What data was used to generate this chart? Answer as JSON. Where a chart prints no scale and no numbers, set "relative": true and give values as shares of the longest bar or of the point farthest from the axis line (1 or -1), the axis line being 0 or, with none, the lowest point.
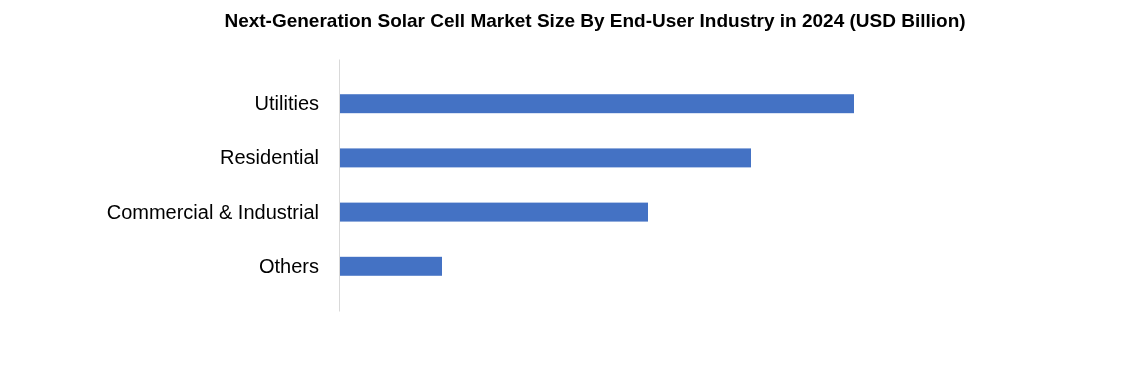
{
  "chart_data": {
    "type": "bar",
    "orientation": "horizontal",
    "relative": true,
    "title": "Next-Generation Solar Cell Market Size By End-User Industry in 2024 (USD Billion)",
    "categories": [
      "Utilities",
      "Residential",
      "Commercial & Industrial",
      "Others"
    ],
    "values": [
      1,
      0.8,
      0.6,
      0.2
    ],
    "color": "#4472c4"
  }
}
